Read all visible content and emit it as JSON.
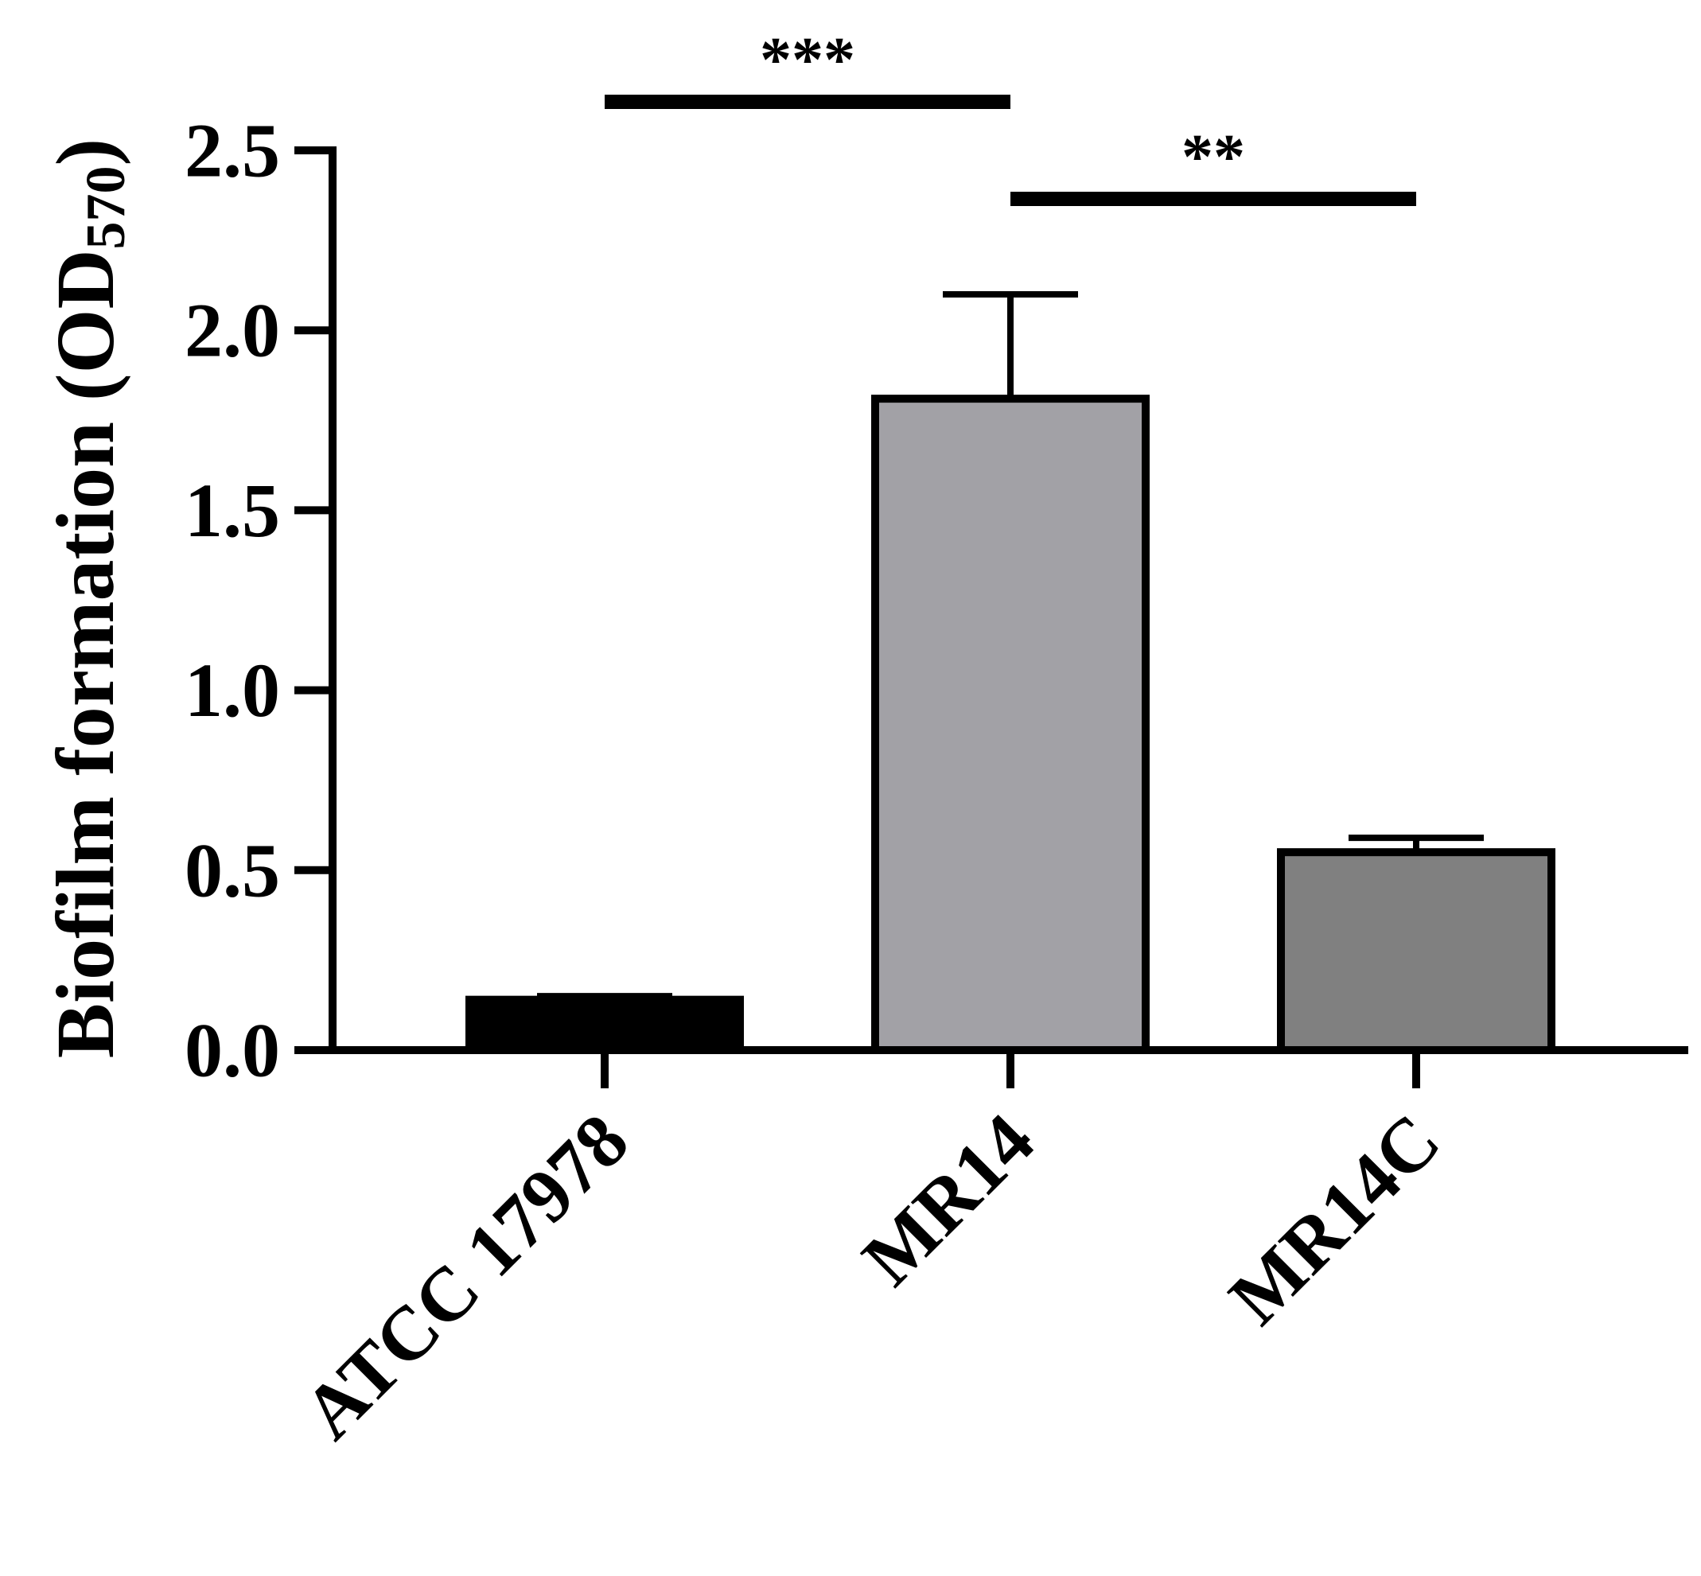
{
  "chart_data": {
    "type": "bar",
    "ylabel": "Biofilm formation (OD",
    "ylabel_subscript": "570",
    "ylabel_close": ")",
    "xlabel": "",
    "categories": [
      "ATCC 17978",
      "MR14",
      "MR14C"
    ],
    "values": [
      0.14,
      1.81,
      0.55
    ],
    "error": [
      0.01,
      0.29,
      0.04
    ],
    "bar_colors": [
      "#000000",
      "#a2a1a6",
      "#808080"
    ],
    "ylim": [
      0.0,
      2.5
    ],
    "yticks": [
      "0.0",
      "0.5",
      "1.0",
      "1.5",
      "2.0",
      "2.5"
    ],
    "grid": false,
    "significance": [
      {
        "from": 0,
        "to": 1,
        "label": "***"
      },
      {
        "from": 1,
        "to": 2,
        "label": "**"
      }
    ]
  }
}
